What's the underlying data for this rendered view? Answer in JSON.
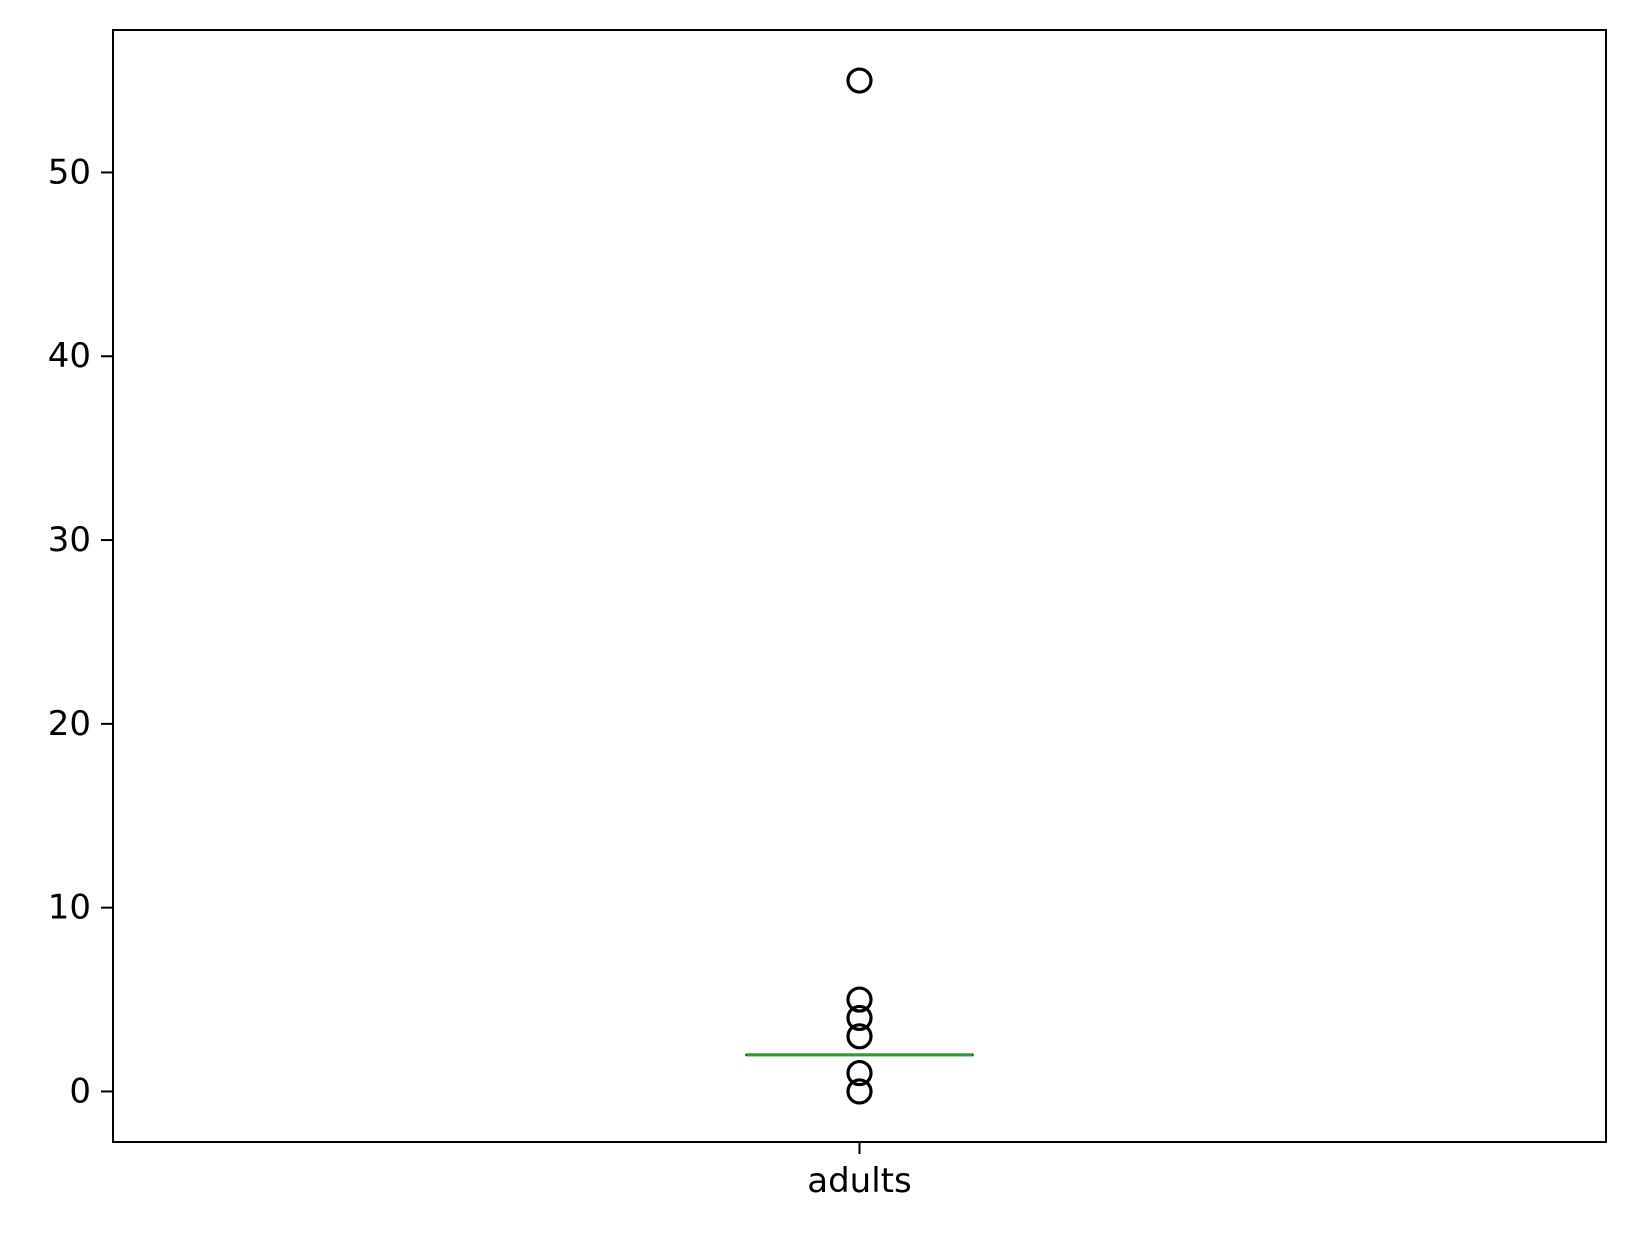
{
  "chart_data": {
    "type": "box",
    "categories": [
      "adults"
    ],
    "series": [
      {
        "category": "adults",
        "q1": 2,
        "median": 2,
        "q3": 2,
        "whisker_low": 2,
        "whisker_high": 2,
        "outliers": [
          0,
          1,
          3,
          4,
          5,
          55
        ]
      }
    ],
    "ylim": [
      -2.75,
      57.75
    ],
    "yticks": [
      0,
      10,
      20,
      30,
      40,
      50
    ],
    "ytick_labels": [
      "0",
      "10",
      "20",
      "30",
      "40",
      "50"
    ],
    "title": "",
    "xlabel": "",
    "ylabel": "",
    "grid": false,
    "colors": {
      "median": "#2ca02c",
      "box": "#000000",
      "outlier": "#000000"
    }
  }
}
